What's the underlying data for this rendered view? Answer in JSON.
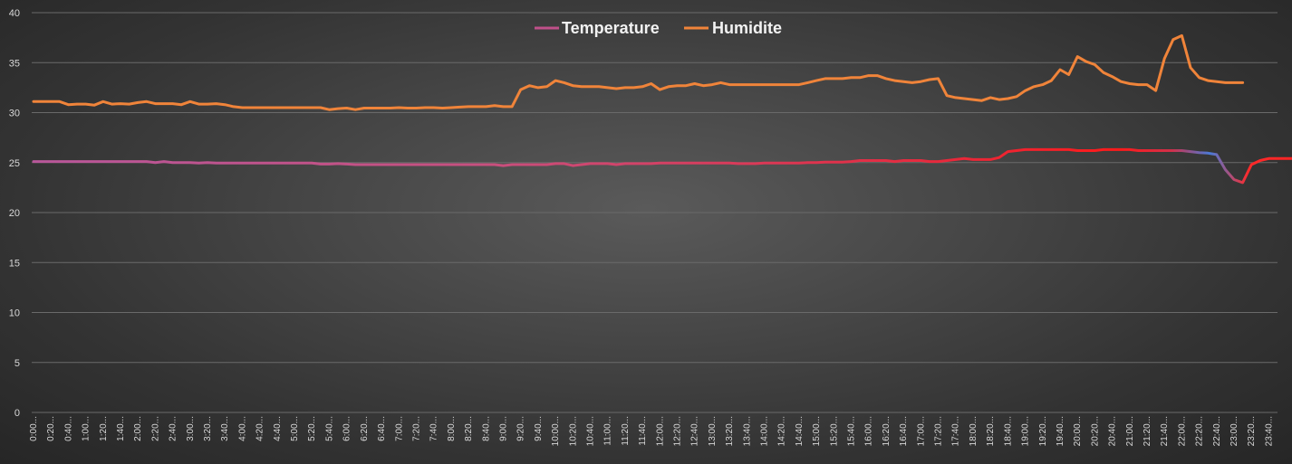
{
  "chart_data": {
    "type": "line",
    "title": "",
    "xlabel": "",
    "ylabel": "",
    "ylim": [
      0,
      40
    ],
    "yticks": [
      0,
      5,
      10,
      15,
      20,
      25,
      30,
      35,
      40
    ],
    "grid": true,
    "legend_position": "top-center",
    "x_interval_minutes": 10,
    "x_tick_labels": [
      "0:00...",
      "0:20...",
      "0:40...",
      "1:00...",
      "1:20...",
      "1:40...",
      "2:00...",
      "2:20...",
      "2:40...",
      "3:00...",
      "3:20...",
      "3:40...",
      "4:00...",
      "4:20...",
      "4:40...",
      "5:00...",
      "5:20...",
      "5:40...",
      "6:00...",
      "6:20...",
      "6:40...",
      "7:00...",
      "7:20...",
      "7:40...",
      "8:00...",
      "8:20...",
      "8:40...",
      "9:00...",
      "9:20...",
      "9:40...",
      "10:00...",
      "10:20...",
      "10:40...",
      "11:00...",
      "11:20...",
      "11:40...",
      "12:00...",
      "12:20...",
      "12:40...",
      "13:00...",
      "13:20...",
      "13:40...",
      "14:00...",
      "14:20...",
      "14:40...",
      "15:00...",
      "15:20...",
      "15:40...",
      "16:00...",
      "16:20...",
      "16:40...",
      "17:00...",
      "17:20...",
      "17:40...",
      "18:00...",
      "18:20...",
      "18:40...",
      "19:00...",
      "19:20...",
      "19:40...",
      "20:00...",
      "20:20...",
      "20:40...",
      "21:00...",
      "21:20...",
      "21:40...",
      "22:00...",
      "22:20...",
      "22:40...",
      "23:00...",
      "23:20...",
      "23:40..."
    ],
    "series": [
      {
        "name": "Temperature",
        "color": "#c0508a",
        "values": [
          25.1,
          25.1,
          25.1,
          25.1,
          25.1,
          25.1,
          25.1,
          25.1,
          25.1,
          25.1,
          25.1,
          25.1,
          25.1,
          25.1,
          25.0,
          25.1,
          25.0,
          25.0,
          25.0,
          24.95,
          25.0,
          24.95,
          24.95,
          24.95,
          24.95,
          24.95,
          24.95,
          24.95,
          24.95,
          24.95,
          24.95,
          24.95,
          24.95,
          24.85,
          24.85,
          24.9,
          24.85,
          24.8,
          24.8,
          24.8,
          24.8,
          24.8,
          24.8,
          24.8,
          24.8,
          24.8,
          24.8,
          24.8,
          24.8,
          24.8,
          24.8,
          24.8,
          24.8,
          24.8,
          24.7,
          24.8,
          24.8,
          24.8,
          24.8,
          24.8,
          24.9,
          24.9,
          24.7,
          24.8,
          24.9,
          24.9,
          24.9,
          24.8,
          24.9,
          24.9,
          24.9,
          24.9,
          24.95,
          24.95,
          24.95,
          24.95,
          24.95,
          24.95,
          24.95,
          24.95,
          24.95,
          24.9,
          24.9,
          24.9,
          24.95,
          24.95,
          24.95,
          24.95,
          24.95,
          25.0,
          25.0,
          25.05,
          25.05,
          25.05,
          25.1,
          25.2,
          25.2,
          25.2,
          25.2,
          25.1,
          25.2,
          25.2,
          25.2,
          25.1,
          25.1,
          25.2,
          25.3,
          25.4,
          25.3,
          25.3,
          25.3,
          25.5,
          26.1,
          26.2,
          26.3,
          26.3,
          26.3,
          26.3,
          26.3,
          26.3,
          26.2,
          26.2,
          26.2,
          26.3,
          26.3,
          26.3,
          26.3,
          26.2,
          26.2,
          26.2,
          26.2,
          26.2,
          26.2,
          26.1,
          26.0,
          25.95,
          25.8,
          24.3,
          23.3,
          23.0,
          24.8,
          25.2,
          25.4,
          25.4,
          25.4,
          25.4,
          25.4,
          25.4
        ]
      },
      {
        "name": "Humidite",
        "color": "#f0843a",
        "values": [
          31.1,
          31.1,
          31.1,
          31.1,
          30.8,
          30.85,
          30.85,
          30.75,
          31.1,
          30.85,
          30.9,
          30.85,
          31.0,
          31.1,
          30.9,
          30.9,
          30.9,
          30.8,
          31.1,
          30.85,
          30.85,
          30.9,
          30.8,
          30.6,
          30.5,
          30.5,
          30.5,
          30.5,
          30.5,
          30.5,
          30.5,
          30.5,
          30.5,
          30.5,
          30.3,
          30.4,
          30.45,
          30.3,
          30.45,
          30.45,
          30.45,
          30.45,
          30.5,
          30.45,
          30.45,
          30.5,
          30.5,
          30.45,
          30.5,
          30.55,
          30.6,
          30.6,
          30.6,
          30.7,
          30.6,
          30.6,
          32.3,
          32.7,
          32.5,
          32.6,
          33.2,
          33.0,
          32.7,
          32.6,
          32.6,
          32.6,
          32.5,
          32.4,
          32.5,
          32.5,
          32.6,
          32.9,
          32.3,
          32.6,
          32.7,
          32.7,
          32.9,
          32.7,
          32.8,
          33.0,
          32.8,
          32.8,
          32.8,
          32.8,
          32.8,
          32.8,
          32.8,
          32.8,
          32.8,
          33.0,
          33.2,
          33.4,
          33.4,
          33.4,
          33.5,
          33.5,
          33.7,
          33.7,
          33.4,
          33.2,
          33.1,
          33.0,
          33.1,
          33.3,
          33.4,
          31.7,
          31.5,
          31.4,
          31.3,
          31.2,
          31.5,
          31.3,
          31.4,
          31.6,
          32.2,
          32.6,
          32.8,
          33.2,
          34.3,
          33.8,
          35.6,
          35.1,
          34.8,
          34.0,
          33.6,
          33.1,
          32.9,
          32.8,
          32.8,
          32.2,
          35.4,
          37.3,
          37.7,
          34.5,
          33.5,
          33.2,
          33.1,
          33.0,
          33.0,
          33.0
        ]
      }
    ]
  }
}
